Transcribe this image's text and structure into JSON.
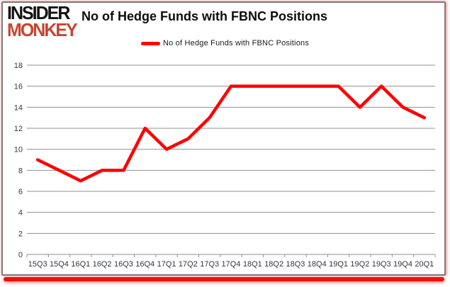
{
  "brand": {
    "line1": "INSIDER",
    "line2": "MONKEY",
    "line2_color": "#c64532"
  },
  "header": {
    "title": "No of Hedge Funds with FBNC Positions"
  },
  "legend": {
    "label": "No of Hedge Funds with FBNC Positions",
    "swatch_color": "#fe0000"
  },
  "frame": {
    "border_color": "#7d7d7d",
    "bottom_bar_color": "#ea120b"
  },
  "chart_data": {
    "type": "line",
    "title": "No of Hedge Funds with FBNC Positions",
    "categories": [
      "15Q3",
      "15Q4",
      "16Q1",
      "16Q2",
      "16Q3",
      "16Q4",
      "17Q1",
      "17Q2",
      "17Q3",
      "17Q4",
      "18Q1",
      "18Q2",
      "18Q3",
      "18Q4",
      "19Q1",
      "19Q2",
      "19Q3",
      "19Q4",
      "20Q1"
    ],
    "series": [
      {
        "name": "No of Hedge Funds with FBNC Positions",
        "values": [
          9,
          8,
          7,
          8,
          8,
          12,
          10,
          11,
          13,
          16,
          16,
          16,
          16,
          16,
          16,
          14,
          16,
          14,
          13
        ]
      }
    ],
    "xlabel": "",
    "ylabel": "",
    "ylim": [
      0,
      18
    ],
    "ytick_step": 2,
    "grid": true,
    "legend_position": "top",
    "line_color": "#fe0000",
    "line_width": 4.5,
    "gridline_color": "#8f8f8f",
    "tick_label_color": "#33363f",
    "tick_label_size": 11
  }
}
